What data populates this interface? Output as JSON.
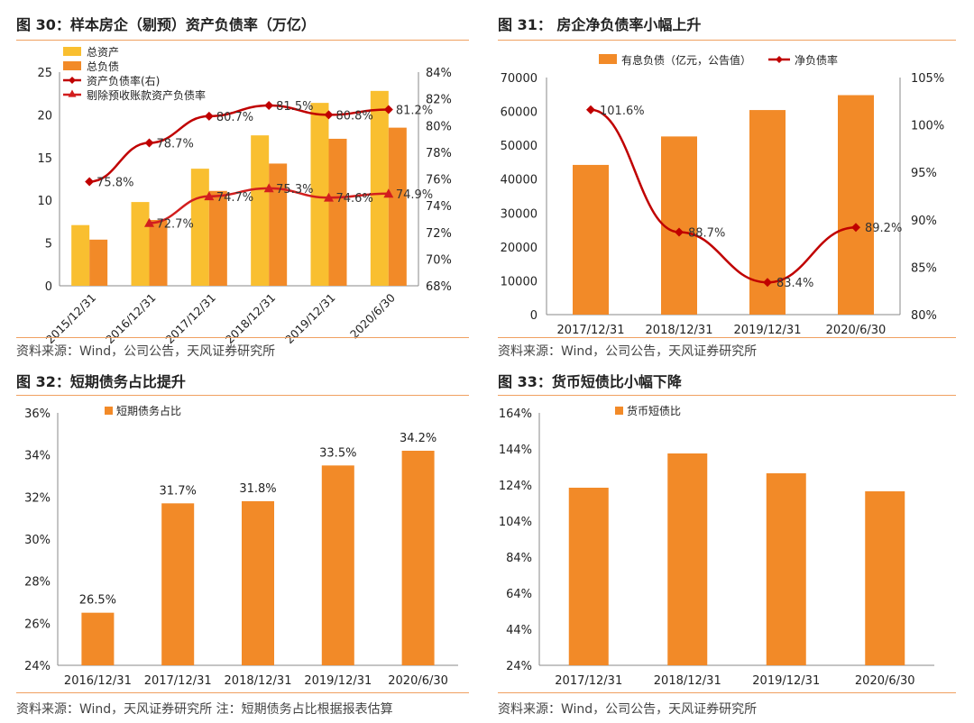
{
  "colors": {
    "orange": "#f28a28",
    "yellow": "#f9bf30",
    "red": "#d21e1e",
    "dark_red": "#c00000",
    "axis": "#999999"
  },
  "panels": [
    {
      "title": "图 30：样本房企（剔预）资产负债率（万亿）",
      "source": "资料来源：Wind，公司公告，天风证券研究所"
    },
    {
      "title": "图 31：  房企净负债率小幅上升",
      "source": "资料来源：Wind，公司公告，天风证券研究所"
    },
    {
      "title": "图 32：短期债务占比提升",
      "source": "资料来源：Wind，天风证券研究所    注：短期债务占比根据报表估算"
    },
    {
      "title": "图 33：货币短债比小幅下降",
      "source": "资料来源：Wind，公司公告，天风证券研究所"
    }
  ],
  "chart_data": [
    {
      "type": "bar",
      "title": "样本房企（剔预）资产负债率（万亿）",
      "categories": [
        "2015/12/31",
        "2016/12/31",
        "2017/12/31",
        "2018/12/31",
        "2019/12/31",
        "2020/6/30"
      ],
      "ylim": [
        0,
        25
      ],
      "yticks": [
        "0",
        "5",
        "10",
        "15",
        "20",
        "25"
      ],
      "y2lim": [
        68,
        84
      ],
      "y2ticks": [
        "68%",
        "70%",
        "72%",
        "74%",
        "76%",
        "78%",
        "80%",
        "82%",
        "84%"
      ],
      "bar_series": [
        {
          "name": "总资产",
          "values": [
            7.1,
            9.8,
            13.7,
            17.6,
            21.4,
            22.8
          ]
        },
        {
          "name": "总负债",
          "values": [
            5.4,
            7.7,
            11.1,
            14.3,
            17.2,
            18.5
          ]
        }
      ],
      "line_series": [
        {
          "name": "资产负债率(右)",
          "values": [
            75.8,
            78.7,
            80.7,
            81.5,
            80.8,
            81.2
          ],
          "labels": [
            "75.8%",
            "78.7%",
            "80.7%",
            "81.5%",
            "80.8%",
            "81.2%"
          ]
        },
        {
          "name": "剔除预收账款资产负债率",
          "values": [
            null,
            72.7,
            74.7,
            75.3,
            74.6,
            74.9
          ],
          "labels": [
            "",
            "72.7%",
            "74.7%",
            "75.3%",
            "74.6%",
            "74.9%"
          ]
        }
      ]
    },
    {
      "type": "bar",
      "title": "房企净负债率小幅上升",
      "categories": [
        "2017/12/31",
        "2018/12/31",
        "2019/12/31",
        "2020/6/30"
      ],
      "ylim": [
        0,
        70000
      ],
      "yticks": [
        "0",
        "10000",
        "20000",
        "30000",
        "40000",
        "50000",
        "60000",
        "70000"
      ],
      "y2lim": [
        80,
        105
      ],
      "y2ticks": [
        "80%",
        "85%",
        "90%",
        "95%",
        "100%",
        "105%"
      ],
      "bar_series": [
        {
          "name": "有息负债（亿元，公告值）",
          "values": [
            44200,
            52600,
            60400,
            64800
          ]
        }
      ],
      "line_series": [
        {
          "name": "净负债率",
          "values": [
            101.6,
            88.7,
            83.4,
            89.2
          ],
          "labels": [
            "101.6%",
            "88.7%",
            "83.4%",
            "89.2%"
          ]
        }
      ]
    },
    {
      "type": "bar",
      "title": "短期债务占比提升",
      "categories": [
        "2016/12/31",
        "2017/12/31",
        "2018/12/31",
        "2019/12/31",
        "2020/6/30"
      ],
      "ylim": [
        24,
        36
      ],
      "yticks": [
        "24%",
        "26%",
        "28%",
        "30%",
        "32%",
        "34%",
        "36%"
      ],
      "bar_series": [
        {
          "name": "短期债务占比",
          "values": [
            26.5,
            31.7,
            31.8,
            33.5,
            34.2
          ]
        }
      ],
      "labels": [
        "26.5%",
        "31.7%",
        "31.8%",
        "33.5%",
        "34.2%"
      ]
    },
    {
      "type": "bar",
      "title": "货币短债比小幅下降",
      "categories": [
        "2017/12/31",
        "2018/12/31",
        "2019/12/31",
        "2020/6/30"
      ],
      "ylim": [
        24,
        164
      ],
      "yticks": [
        "24%",
        "44%",
        "64%",
        "84%",
        "104%",
        "124%",
        "144%",
        "164%"
      ],
      "bar_series": [
        {
          "name": "货币短债比",
          "values": [
            122.5,
            141.5,
            130.5,
            120.5
          ]
        }
      ]
    }
  ]
}
